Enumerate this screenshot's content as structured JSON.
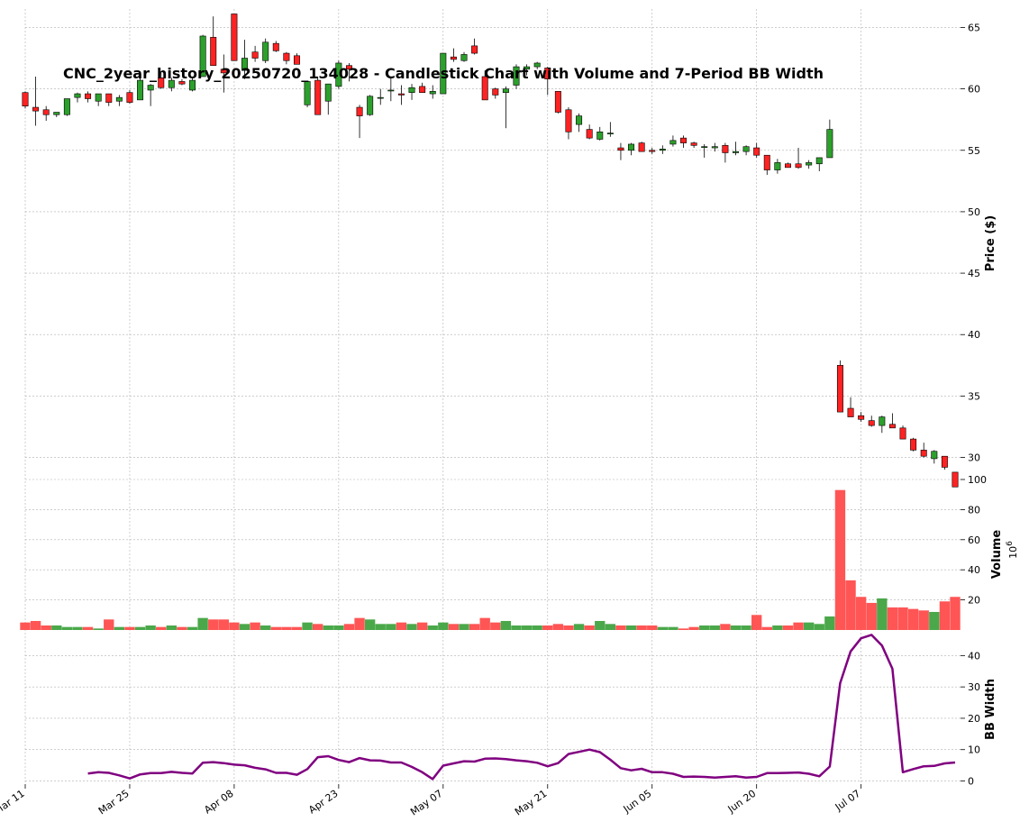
{
  "chart_data": {
    "type": "candlestick",
    "title": "CNC_2year_history_20250720_134028 - Candlestick Chart with Volume and 7-Period BB Width",
    "x_tick_labels": [
      "Mar 11",
      "Mar 25",
      "Apr 08",
      "Apr 23",
      "May 07",
      "May 21",
      "Jun 05",
      "Jun 20",
      "Jul 07"
    ],
    "x_tick_indices": [
      0,
      10,
      20,
      30,
      40,
      50,
      60,
      70,
      80
    ],
    "price_panel": {
      "ylabel": "Price ($)",
      "ylim": [
        28.5,
        66.5
      ],
      "yticks": [
        30,
        35,
        40,
        45,
        50,
        55,
        60,
        65
      ]
    },
    "volume_panel": {
      "ylabel": "Volume",
      "multiplier_label": "10^6",
      "ylim": [
        0,
        100
      ],
      "yticks": [
        20,
        40,
        60,
        80,
        100
      ]
    },
    "bbwidth_panel": {
      "ylabel": "BB Width",
      "ylim": [
        -1,
        47
      ],
      "yticks": [
        0,
        10,
        20,
        30,
        40
      ],
      "color": "#800080"
    },
    "colors": {
      "up": "#2ca02c",
      "down": "#ff2222",
      "vol_up": "#4aa84a",
      "vol_down": "#ff5555"
    },
    "ohlc": [
      [
        59.7,
        59.8,
        58.4,
        58.6
      ],
      [
        58.5,
        61.0,
        57.0,
        58.2
      ],
      [
        58.3,
        58.6,
        57.4,
        57.9
      ],
      [
        57.9,
        58.1,
        57.7,
        58.1
      ],
      [
        57.9,
        59.2,
        57.8,
        59.2
      ],
      [
        59.3,
        59.7,
        58.9,
        59.6
      ],
      [
        59.6,
        59.8,
        58.9,
        59.2
      ],
      [
        59.0,
        59.6,
        58.6,
        59.6
      ],
      [
        59.6,
        59.6,
        58.6,
        58.9
      ],
      [
        59.0,
        59.5,
        58.6,
        59.3
      ],
      [
        59.7,
        59.9,
        58.8,
        58.9
      ],
      [
        59.1,
        60.9,
        59.1,
        60.7
      ],
      [
        59.9,
        60.4,
        58.6,
        60.3
      ],
      [
        60.9,
        61.3,
        60.0,
        60.1
      ],
      [
        60.1,
        60.9,
        59.8,
        60.7
      ],
      [
        60.6,
        60.8,
        60.3,
        60.4
      ],
      [
        59.9,
        61.0,
        59.8,
        60.7
      ],
      [
        61.0,
        64.4,
        61.0,
        64.3
      ],
      [
        64.2,
        65.9,
        61.9,
        61.9
      ],
      [
        61.6,
        62.8,
        59.7,
        61.3
      ],
      [
        66.1,
        66.1,
        62.3,
        62.3
      ],
      [
        61.5,
        64.0,
        60.8,
        62.5
      ],
      [
        63.0,
        63.5,
        62.2,
        62.5
      ],
      [
        62.3,
        64.1,
        62.1,
        63.8
      ],
      [
        63.7,
        63.9,
        63.0,
        63.1
      ],
      [
        62.9,
        63.0,
        62.0,
        62.3
      ],
      [
        62.7,
        62.9,
        62.2,
        62.0
      ],
      [
        58.7,
        60.6,
        58.5,
        60.6
      ],
      [
        60.7,
        61.0,
        57.9,
        57.9
      ],
      [
        59.0,
        60.4,
        57.9,
        60.4
      ],
      [
        60.2,
        62.3,
        60.0,
        62.1
      ],
      [
        61.9,
        62.1,
        60.6,
        61.6
      ],
      [
        58.5,
        58.7,
        56.0,
        57.8
      ],
      [
        57.9,
        59.5,
        57.8,
        59.4
      ],
      [
        59.3,
        60.0,
        58.7,
        59.3
      ],
      [
        59.9,
        60.9,
        59.0,
        59.9
      ],
      [
        59.6,
        60.3,
        58.7,
        59.5
      ],
      [
        59.7,
        60.4,
        59.1,
        60.1
      ],
      [
        60.2,
        60.5,
        59.7,
        59.7
      ],
      [
        59.6,
        60.3,
        59.2,
        59.8
      ],
      [
        59.6,
        62.9,
        59.6,
        62.9
      ],
      [
        62.6,
        63.3,
        62.2,
        62.4
      ],
      [
        62.3,
        63.0,
        62.2,
        62.8
      ],
      [
        63.5,
        64.1,
        62.8,
        62.9
      ],
      [
        61.0,
        61.5,
        59.1,
        59.1
      ],
      [
        60.0,
        60.1,
        59.2,
        59.5
      ],
      [
        59.7,
        60.2,
        56.8,
        60.0
      ],
      [
        60.3,
        62.0,
        60.0,
        61.8
      ],
      [
        61.6,
        62.0,
        61.1,
        61.8
      ],
      [
        61.8,
        62.2,
        61.6,
        62.1
      ],
      [
        61.7,
        61.8,
        59.5,
        60.8
      ],
      [
        59.8,
        59.8,
        58.0,
        58.1
      ],
      [
        58.3,
        58.5,
        55.9,
        56.5
      ],
      [
        57.1,
        58.0,
        56.5,
        57.8
      ],
      [
        56.7,
        57.1,
        55.9,
        56.0
      ],
      [
        55.9,
        56.9,
        55.8,
        56.5
      ],
      [
        56.4,
        57.3,
        56.1,
        56.4
      ],
      [
        55.2,
        55.6,
        54.2,
        55.0
      ],
      [
        55.0,
        55.6,
        54.6,
        55.5
      ],
      [
        55.6,
        55.7,
        54.9,
        54.9
      ],
      [
        55.0,
        55.2,
        54.7,
        54.9
      ],
      [
        55.0,
        55.4,
        54.7,
        55.1
      ],
      [
        55.5,
        56.2,
        55.3,
        55.8
      ],
      [
        56.0,
        56.2,
        55.2,
        55.6
      ],
      [
        55.6,
        55.7,
        55.2,
        55.4
      ],
      [
        55.3,
        55.5,
        54.4,
        55.3
      ],
      [
        55.2,
        55.6,
        54.9,
        55.3
      ],
      [
        55.4,
        55.6,
        54.0,
        54.8
      ],
      [
        54.8,
        55.7,
        54.6,
        54.9
      ],
      [
        54.9,
        55.4,
        54.6,
        55.3
      ],
      [
        55.2,
        55.6,
        54.4,
        54.6
      ],
      [
        54.6,
        54.6,
        53.0,
        53.4
      ],
      [
        53.4,
        54.3,
        53.1,
        54.0
      ],
      [
        53.9,
        54.0,
        53.6,
        53.6
      ],
      [
        53.9,
        55.2,
        53.5,
        53.6
      ],
      [
        53.8,
        54.2,
        53.5,
        54.0
      ],
      [
        53.9,
        54.4,
        53.3,
        54.4
      ],
      [
        54.4,
        57.5,
        54.4,
        56.7
      ],
      [
        37.5,
        37.9,
        33.7,
        33.7
      ],
      [
        34.0,
        34.9,
        33.3,
        33.3
      ],
      [
        33.4,
        33.7,
        32.9,
        33.1
      ],
      [
        33.0,
        33.4,
        32.5,
        32.6
      ],
      [
        32.6,
        33.4,
        32.0,
        33.3
      ],
      [
        32.7,
        33.6,
        32.4,
        32.4
      ],
      [
        32.4,
        32.6,
        31.5,
        31.5
      ],
      [
        31.5,
        31.6,
        30.5,
        30.6
      ],
      [
        30.6,
        31.2,
        30.0,
        30.1
      ],
      [
        29.9,
        30.6,
        29.5,
        30.5
      ],
      [
        30.1,
        30.1,
        29.0,
        29.2
      ],
      [
        28.8,
        28.8,
        27.6,
        27.6
      ]
    ],
    "volume": [
      5,
      6,
      3,
      3,
      2,
      2,
      2,
      1,
      7,
      2,
      2,
      2,
      3,
      2,
      3,
      2,
      2,
      8,
      7,
      7,
      5,
      4,
      5,
      3,
      2,
      2,
      2,
      5,
      4,
      3,
      3,
      4,
      8,
      7,
      4,
      4,
      5,
      4,
      5,
      3,
      5,
      4,
      4,
      4,
      8,
      5,
      6,
      3,
      3,
      3,
      3,
      4,
      3,
      4,
      3,
      6,
      4,
      3,
      3,
      3,
      3,
      2,
      2,
      1,
      2,
      3,
      3,
      4,
      3,
      3,
      10,
      2,
      3,
      3,
      5,
      5,
      4,
      9,
      93,
      33,
      22,
      18,
      21,
      15,
      15,
      14,
      13,
      12,
      19,
      22
    ],
    "bb_width": [
      null,
      null,
      null,
      null,
      null,
      null,
      2.4,
      2.8,
      2.6,
      1.8,
      0.8,
      2.1,
      2.5,
      2.5,
      2.9,
      2.6,
      2.4,
      5.8,
      6.0,
      5.7,
      5.2,
      5.0,
      4.2,
      3.7,
      2.6,
      2.6,
      2.0,
      3.8,
      7.6,
      7.9,
      6.7,
      6.0,
      7.3,
      6.6,
      6.5,
      5.9,
      5.9,
      4.5,
      2.8,
      0.6,
      4.9,
      5.6,
      6.3,
      6.2,
      7.1,
      7.2,
      7.0,
      6.6,
      6.3,
      5.8,
      4.7,
      5.7,
      8.6,
      9.3,
      10.0,
      9.2,
      6.8,
      4.1,
      3.4,
      3.9,
      2.8,
      2.8,
      2.3,
      1.3,
      1.4,
      1.3,
      1.1,
      1.3,
      1.5,
      1.1,
      1.3,
      2.5,
      2.5,
      2.6,
      2.7,
      2.3,
      1.5,
      4.6,
      31.2,
      41.3,
      45.5,
      46.6,
      43.2,
      35.8,
      2.8,
      3.8,
      4.7,
      4.8,
      5.6,
      5.9
    ]
  }
}
